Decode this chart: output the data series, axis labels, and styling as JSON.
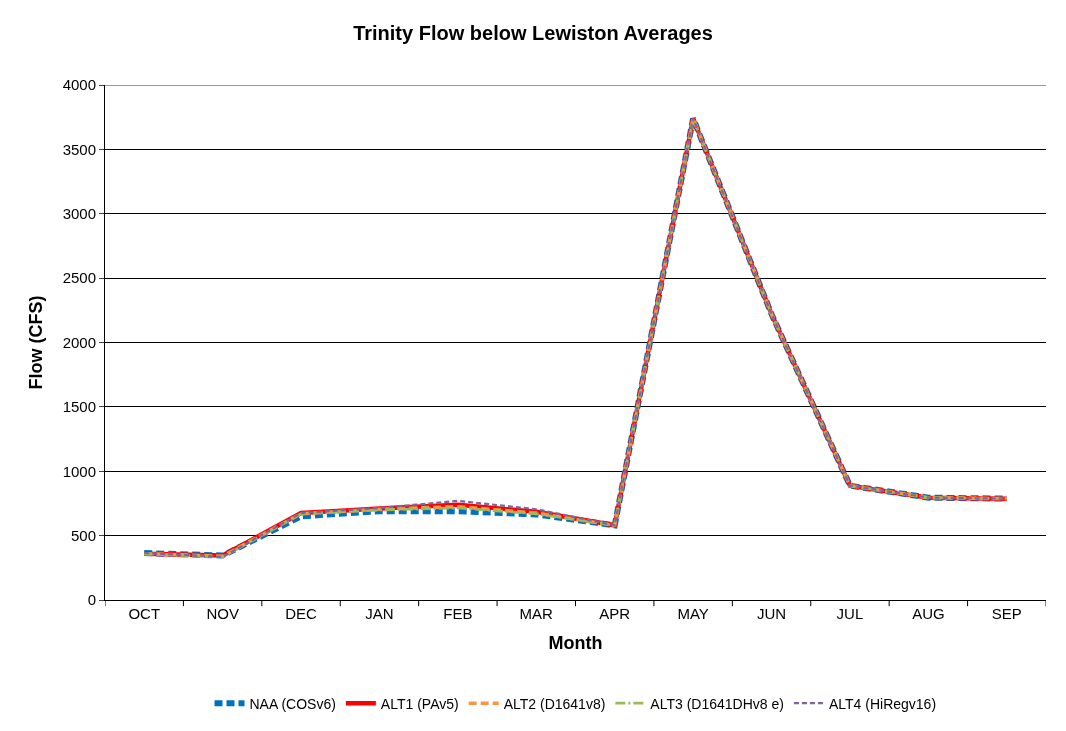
{
  "chart_data": {
    "type": "line",
    "title": "Trinity Flow below Lewiston Averages",
    "xlabel": "Month",
    "ylabel": "Flow (CFS)",
    "categories": [
      "OCT",
      "NOV",
      "DEC",
      "JAN",
      "FEB",
      "MAR",
      "APR",
      "MAY",
      "JUN",
      "JUL",
      "AUG",
      "SEP"
    ],
    "series": [
      {
        "name": "NAA (COSv6)",
        "color": "#0070c0",
        "line_style": "dashed",
        "values": [
          365,
          345,
          650,
          690,
          690,
          665,
          580,
          3740,
          2220,
          888,
          795,
          787
        ]
      },
      {
        "name": "ALT1 (PAv5)",
        "color": "#ff0000",
        "line_style": "solid",
        "values": [
          360,
          345,
          675,
          710,
          740,
          685,
          580,
          3740,
          2220,
          888,
          795,
          787
        ]
      },
      {
        "name": "ALT2 (D1641v8)",
        "color": "#f79646",
        "line_style": "dashed",
        "values": [
          360,
          340,
          670,
          705,
          725,
          675,
          580,
          3740,
          2220,
          888,
          795,
          787
        ]
      },
      {
        "name": "ALT3 (D1641DHv8 e)",
        "color": "#9bbb59",
        "line_style": "dashdot",
        "values": [
          360,
          335,
          670,
          700,
          715,
          670,
          580,
          3740,
          2220,
          888,
          795,
          787
        ]
      },
      {
        "name": "ALT4 (HiRegv16)",
        "color": "#8064a2",
        "line_style": "dotted",
        "values": [
          365,
          335,
          675,
          715,
          770,
          705,
          580,
          3740,
          2220,
          888,
          795,
          787
        ]
      }
    ],
    "ylim": [
      0,
      4000
    ],
    "yticks": [
      0,
      500,
      1000,
      1500,
      2000,
      2500,
      3000,
      3500,
      4000
    ],
    "grid": "y",
    "legend": "bottom",
    "marker": "none"
  }
}
